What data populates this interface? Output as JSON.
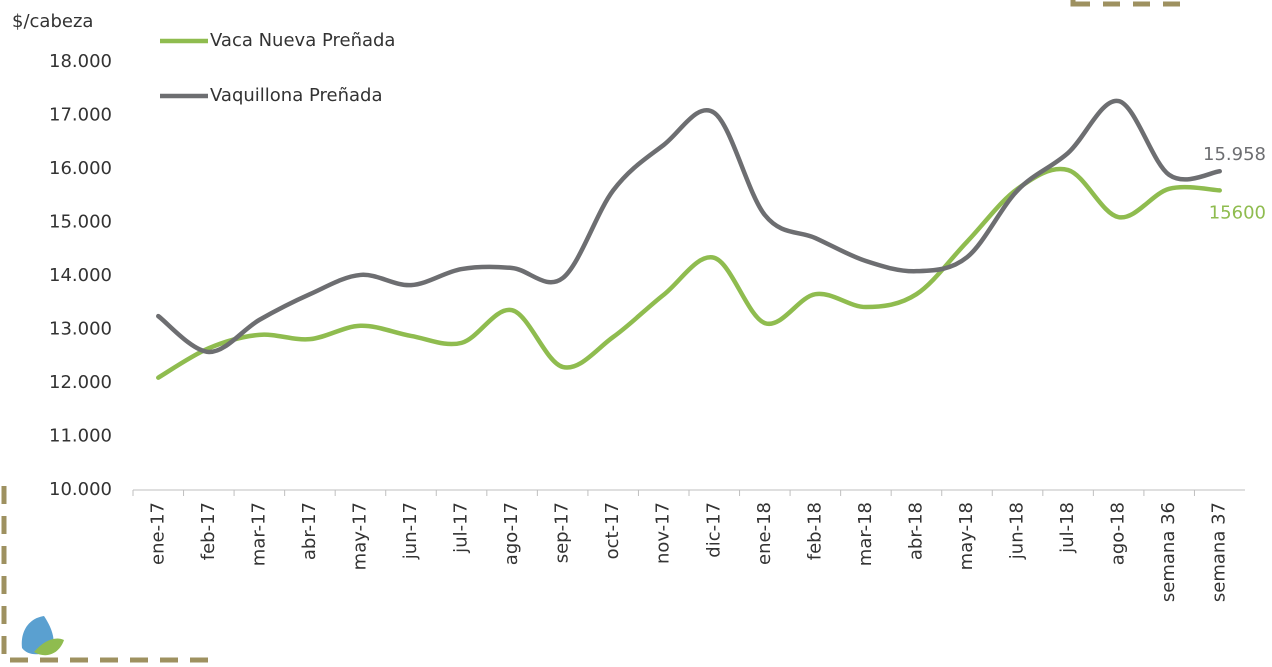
{
  "chart_data": {
    "type": "line",
    "ylabel": "$/cabeza",
    "categories": [
      "ene-17",
      "feb-17",
      "mar-17",
      "abr-17",
      "may-17",
      "jun-17",
      "jul-17",
      "ago-17",
      "sep-17",
      "oct-17",
      "nov-17",
      "dic-17",
      "ene-18",
      "feb-18",
      "mar-18",
      "abr-18",
      "may-18",
      "jun-18",
      "jul-18",
      "ago-18",
      "semana 36",
      "semana 37"
    ],
    "series": [
      {
        "name": "Vaca Nueva Preñada",
        "color": "#8fbc4f",
        "values": [
          12100,
          12650,
          12900,
          12820,
          13070,
          12880,
          12750,
          13360,
          12300,
          12860,
          13650,
          14340,
          13120,
          13660,
          13420,
          13660,
          14640,
          15630,
          15980,
          15100,
          15630,
          15600
        ],
        "value_labels": [
          null,
          null,
          null,
          null,
          null,
          null,
          null,
          null,
          null,
          null,
          null,
          null,
          null,
          null,
          null,
          null,
          null,
          null,
          null,
          null,
          null,
          "15600"
        ]
      },
      {
        "name": "Vaquillona Preñada",
        "color": "#6d6e71",
        "values": [
          13250,
          12580,
          13180,
          13660,
          14020,
          13830,
          14130,
          14150,
          13960,
          15600,
          16450,
          17050,
          15140,
          14710,
          14280,
          14090,
          14350,
          15600,
          16300,
          17270,
          15890,
          15958
        ],
        "value_labels": [
          null,
          null,
          null,
          null,
          null,
          null,
          null,
          null,
          null,
          null,
          null,
          null,
          null,
          null,
          null,
          null,
          null,
          null,
          null,
          null,
          null,
          "15.958"
        ]
      }
    ],
    "ylim": [
      10000,
      18000
    ],
    "yticks": [
      {
        "value": 10000,
        "label": "10.000"
      },
      {
        "value": 11000,
        "label": "11.000"
      },
      {
        "value": 12000,
        "label": "12.000"
      },
      {
        "value": 13000,
        "label": "13.000"
      },
      {
        "value": 14000,
        "label": "14.000"
      },
      {
        "value": 15000,
        "label": "15.000"
      },
      {
        "value": 16000,
        "label": "16.000"
      },
      {
        "value": 17000,
        "label": "17.000"
      },
      {
        "value": 18000,
        "label": "18.000"
      }
    ],
    "grid": false,
    "legend": "top-left"
  }
}
